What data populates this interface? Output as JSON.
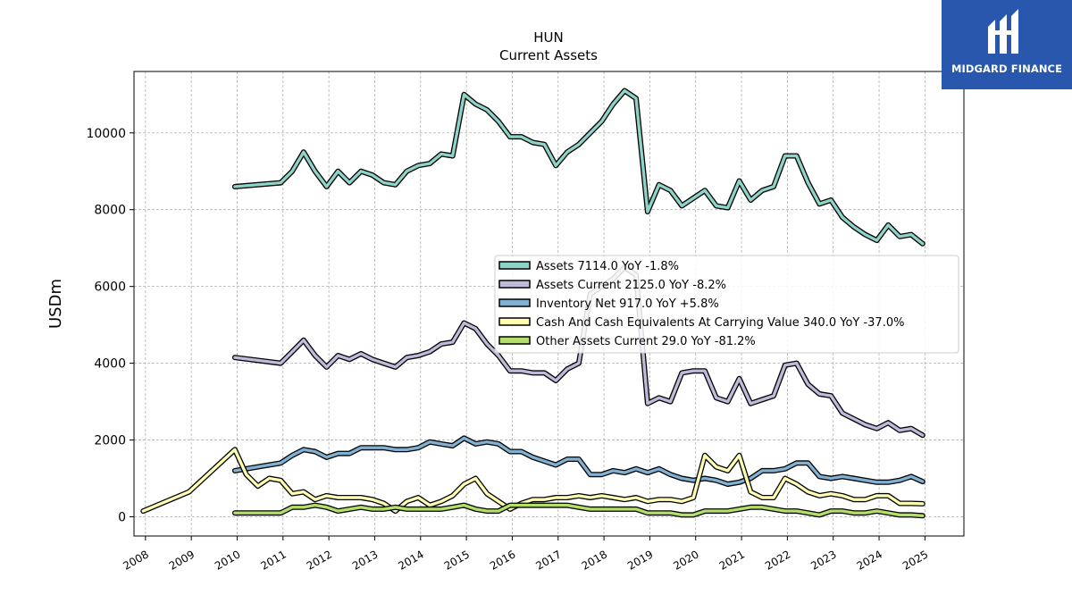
{
  "chart_data": {
    "type": "line",
    "title": "HUN",
    "subtitle": "Current  Assets",
    "ylabel": "USDm",
    "xlabel": "",
    "xlim": [
      2007.75,
      2025.85
    ],
    "ylim": [
      -500,
      11600
    ],
    "yticks": [
      0,
      2000,
      4000,
      6000,
      8000,
      10000
    ],
    "xticks": [
      "2008",
      "2009",
      "2010",
      "2011",
      "2012",
      "2013",
      "2014",
      "2015",
      "2016",
      "2017",
      "2018",
      "2019",
      "2020",
      "2021",
      "2022",
      "2023",
      "2024",
      "2025"
    ],
    "grid": true,
    "legend_position": "center-right",
    "series": [
      {
        "name": "Assets  7114.0 YoY -1.8%",
        "color": "#8dd3c7",
        "points": [
          [
            2009.95,
            8600
          ],
          [
            2010.95,
            8700
          ],
          [
            2011.2,
            9000
          ],
          [
            2011.45,
            9500
          ],
          [
            2011.7,
            9000
          ],
          [
            2011.95,
            8600
          ],
          [
            2012.2,
            9000
          ],
          [
            2012.45,
            8700
          ],
          [
            2012.7,
            9000
          ],
          [
            2012.95,
            8900
          ],
          [
            2013.2,
            8700
          ],
          [
            2013.45,
            8650
          ],
          [
            2013.7,
            9000
          ],
          [
            2013.95,
            9150
          ],
          [
            2014.2,
            9200
          ],
          [
            2014.45,
            9450
          ],
          [
            2014.7,
            9400
          ],
          [
            2014.95,
            11000
          ],
          [
            2015.2,
            10750
          ],
          [
            2015.45,
            10600
          ],
          [
            2015.7,
            10300
          ],
          [
            2015.95,
            9900
          ],
          [
            2016.2,
            9900
          ],
          [
            2016.45,
            9750
          ],
          [
            2016.7,
            9700
          ],
          [
            2016.95,
            9150
          ],
          [
            2017.2,
            9500
          ],
          [
            2017.45,
            9700
          ],
          [
            2017.7,
            10000
          ],
          [
            2017.95,
            10300
          ],
          [
            2018.2,
            10750
          ],
          [
            2018.45,
            11100
          ],
          [
            2018.7,
            10900
          ],
          [
            2018.95,
            7950
          ],
          [
            2019.2,
            8650
          ],
          [
            2019.45,
            8500
          ],
          [
            2019.7,
            8100
          ],
          [
            2019.95,
            8300
          ],
          [
            2020.2,
            8500
          ],
          [
            2020.45,
            8100
          ],
          [
            2020.7,
            8050
          ],
          [
            2020.95,
            8750
          ],
          [
            2021.2,
            8250
          ],
          [
            2021.45,
            8500
          ],
          [
            2021.7,
            8600
          ],
          [
            2021.95,
            9400
          ],
          [
            2022.2,
            9400
          ],
          [
            2022.45,
            8700
          ],
          [
            2022.7,
            8150
          ],
          [
            2022.95,
            8250
          ],
          [
            2023.2,
            7800
          ],
          [
            2023.45,
            7550
          ],
          [
            2023.7,
            7350
          ],
          [
            2023.95,
            7200
          ],
          [
            2024.2,
            7600
          ],
          [
            2024.45,
            7300
          ],
          [
            2024.7,
            7350
          ],
          [
            2024.95,
            7114
          ]
        ]
      },
      {
        "name": "Assets Current  2125.0 YoY -8.2%",
        "color": "#bebada",
        "points": [
          [
            2009.95,
            4150
          ],
          [
            2010.95,
            4000
          ],
          [
            2011.2,
            4300
          ],
          [
            2011.45,
            4600
          ],
          [
            2011.7,
            4200
          ],
          [
            2011.95,
            3900
          ],
          [
            2012.2,
            4200
          ],
          [
            2012.45,
            4100
          ],
          [
            2012.7,
            4250
          ],
          [
            2012.95,
            4100
          ],
          [
            2013.2,
            4000
          ],
          [
            2013.45,
            3900
          ],
          [
            2013.7,
            4150
          ],
          [
            2013.95,
            4200
          ],
          [
            2014.2,
            4300
          ],
          [
            2014.45,
            4500
          ],
          [
            2014.7,
            4550
          ],
          [
            2014.95,
            5050
          ],
          [
            2015.2,
            4900
          ],
          [
            2015.45,
            4500
          ],
          [
            2015.7,
            4200
          ],
          [
            2015.95,
            3800
          ],
          [
            2016.2,
            3800
          ],
          [
            2016.45,
            3750
          ],
          [
            2016.7,
            3750
          ],
          [
            2016.95,
            3550
          ],
          [
            2017.2,
            3850
          ],
          [
            2017.45,
            4000
          ],
          [
            2017.7,
            5800
          ],
          [
            2017.95,
            6000
          ],
          [
            2018.2,
            6200
          ],
          [
            2018.45,
            6500
          ],
          [
            2018.7,
            6300
          ],
          [
            2018.95,
            2950
          ],
          [
            2019.2,
            3100
          ],
          [
            2019.45,
            3000
          ],
          [
            2019.7,
            3750
          ],
          [
            2019.95,
            3800
          ],
          [
            2020.2,
            3800
          ],
          [
            2020.45,
            3100
          ],
          [
            2020.7,
            3000
          ],
          [
            2020.95,
            3600
          ],
          [
            2021.2,
            2950
          ],
          [
            2021.45,
            3050
          ],
          [
            2021.7,
            3150
          ],
          [
            2021.95,
            3950
          ],
          [
            2022.2,
            4000
          ],
          [
            2022.45,
            3450
          ],
          [
            2022.7,
            3200
          ],
          [
            2022.95,
            3150
          ],
          [
            2023.2,
            2700
          ],
          [
            2023.45,
            2550
          ],
          [
            2023.7,
            2400
          ],
          [
            2023.95,
            2300
          ],
          [
            2024.2,
            2450
          ],
          [
            2024.45,
            2250
          ],
          [
            2024.7,
            2300
          ],
          [
            2024.95,
            2125
          ]
        ]
      },
      {
        "name": "Inventory Net  917.0 YoY +5.8%",
        "color": "#80b1d3",
        "points": [
          [
            2009.95,
            1200
          ],
          [
            2010.95,
            1400
          ],
          [
            2011.2,
            1600
          ],
          [
            2011.45,
            1750
          ],
          [
            2011.7,
            1700
          ],
          [
            2011.95,
            1550
          ],
          [
            2012.2,
            1650
          ],
          [
            2012.45,
            1650
          ],
          [
            2012.7,
            1800
          ],
          [
            2012.95,
            1800
          ],
          [
            2013.2,
            1800
          ],
          [
            2013.45,
            1750
          ],
          [
            2013.7,
            1750
          ],
          [
            2013.95,
            1800
          ],
          [
            2014.2,
            1950
          ],
          [
            2014.45,
            1900
          ],
          [
            2014.7,
            1850
          ],
          [
            2014.95,
            2050
          ],
          [
            2015.2,
            1900
          ],
          [
            2015.45,
            1950
          ],
          [
            2015.7,
            1900
          ],
          [
            2015.95,
            1700
          ],
          [
            2016.2,
            1700
          ],
          [
            2016.45,
            1550
          ],
          [
            2016.7,
            1450
          ],
          [
            2016.95,
            1350
          ],
          [
            2017.2,
            1500
          ],
          [
            2017.45,
            1500
          ],
          [
            2017.7,
            1100
          ],
          [
            2017.95,
            1100
          ],
          [
            2018.2,
            1200
          ],
          [
            2018.45,
            1150
          ],
          [
            2018.7,
            1250
          ],
          [
            2018.95,
            1150
          ],
          [
            2019.2,
            1250
          ],
          [
            2019.45,
            1100
          ],
          [
            2019.7,
            1000
          ],
          [
            2019.95,
            950
          ],
          [
            2020.2,
            1000
          ],
          [
            2020.45,
            950
          ],
          [
            2020.7,
            850
          ],
          [
            2020.95,
            900
          ],
          [
            2021.2,
            1000
          ],
          [
            2021.45,
            1200
          ],
          [
            2021.7,
            1200
          ],
          [
            2021.95,
            1250
          ],
          [
            2022.2,
            1400
          ],
          [
            2022.45,
            1400
          ],
          [
            2022.7,
            1050
          ],
          [
            2022.95,
            1000
          ],
          [
            2023.2,
            1050
          ],
          [
            2023.45,
            1000
          ],
          [
            2023.7,
            950
          ],
          [
            2023.95,
            900
          ],
          [
            2024.2,
            900
          ],
          [
            2024.45,
            950
          ],
          [
            2024.7,
            1050
          ],
          [
            2024.95,
            917
          ]
        ]
      },
      {
        "name": "Cash And Cash Equivalents At Carrying Value  340.0 YoY -37.0%",
        "color": "#ffffb3",
        "points": [
          [
            2007.95,
            150
          ],
          [
            2008.95,
            650
          ],
          [
            2009.95,
            1750
          ],
          [
            2010.2,
            1100
          ],
          [
            2010.45,
            800
          ],
          [
            2010.7,
            1000
          ],
          [
            2010.95,
            950
          ],
          [
            2011.2,
            600
          ],
          [
            2011.45,
            650
          ],
          [
            2011.7,
            450
          ],
          [
            2011.95,
            550
          ],
          [
            2012.2,
            500
          ],
          [
            2012.45,
            500
          ],
          [
            2012.7,
            500
          ],
          [
            2012.95,
            450
          ],
          [
            2013.2,
            350
          ],
          [
            2013.45,
            150
          ],
          [
            2013.7,
            400
          ],
          [
            2013.95,
            500
          ],
          [
            2014.2,
            300
          ],
          [
            2014.45,
            400
          ],
          [
            2014.7,
            550
          ],
          [
            2014.95,
            850
          ],
          [
            2015.2,
            1000
          ],
          [
            2015.45,
            600
          ],
          [
            2015.7,
            400
          ],
          [
            2015.95,
            200
          ],
          [
            2016.2,
            350
          ],
          [
            2016.45,
            450
          ],
          [
            2016.7,
            450
          ],
          [
            2016.95,
            500
          ],
          [
            2017.2,
            500
          ],
          [
            2017.45,
            550
          ],
          [
            2017.7,
            500
          ],
          [
            2017.95,
            550
          ],
          [
            2018.2,
            500
          ],
          [
            2018.45,
            450
          ],
          [
            2018.7,
            500
          ],
          [
            2018.95,
            400
          ],
          [
            2019.2,
            450
          ],
          [
            2019.45,
            450
          ],
          [
            2019.7,
            400
          ],
          [
            2019.95,
            500
          ],
          [
            2020.2,
            1600
          ],
          [
            2020.45,
            1300
          ],
          [
            2020.7,
            1200
          ],
          [
            2020.95,
            1600
          ],
          [
            2021.2,
            650
          ],
          [
            2021.45,
            500
          ],
          [
            2021.7,
            500
          ],
          [
            2021.95,
            1000
          ],
          [
            2022.2,
            850
          ],
          [
            2022.45,
            650
          ],
          [
            2022.7,
            550
          ],
          [
            2022.95,
            600
          ],
          [
            2023.2,
            550
          ],
          [
            2023.45,
            450
          ],
          [
            2023.7,
            450
          ],
          [
            2023.95,
            550
          ],
          [
            2024.2,
            550
          ],
          [
            2024.45,
            350
          ],
          [
            2024.7,
            350
          ],
          [
            2024.95,
            340
          ]
        ]
      },
      {
        "name": "Other Assets Current  29.0 YoY -81.2%",
        "color": "#b3de69",
        "points": [
          [
            2009.95,
            100
          ],
          [
            2010.95,
            100
          ],
          [
            2011.2,
            250
          ],
          [
            2011.45,
            250
          ],
          [
            2011.7,
            300
          ],
          [
            2011.95,
            250
          ],
          [
            2012.2,
            150
          ],
          [
            2012.45,
            200
          ],
          [
            2012.7,
            250
          ],
          [
            2012.95,
            200
          ],
          [
            2013.2,
            200
          ],
          [
            2013.45,
            250
          ],
          [
            2013.7,
            200
          ],
          [
            2013.95,
            200
          ],
          [
            2014.2,
            200
          ],
          [
            2014.45,
            200
          ],
          [
            2014.7,
            250
          ],
          [
            2014.95,
            300
          ],
          [
            2015.2,
            200
          ],
          [
            2015.45,
            150
          ],
          [
            2015.7,
            150
          ],
          [
            2015.95,
            300
          ],
          [
            2016.2,
            300
          ],
          [
            2016.45,
            300
          ],
          [
            2016.7,
            300
          ],
          [
            2016.95,
            300
          ],
          [
            2017.2,
            300
          ],
          [
            2017.45,
            250
          ],
          [
            2017.7,
            200
          ],
          [
            2017.95,
            200
          ],
          [
            2018.2,
            200
          ],
          [
            2018.45,
            200
          ],
          [
            2018.7,
            200
          ],
          [
            2018.95,
            100
          ],
          [
            2019.2,
            100
          ],
          [
            2019.45,
            100
          ],
          [
            2019.7,
            50
          ],
          [
            2019.95,
            50
          ],
          [
            2020.2,
            150
          ],
          [
            2020.45,
            150
          ],
          [
            2020.7,
            150
          ],
          [
            2020.95,
            200
          ],
          [
            2021.2,
            250
          ],
          [
            2021.45,
            250
          ],
          [
            2021.7,
            200
          ],
          [
            2021.95,
            150
          ],
          [
            2022.2,
            150
          ],
          [
            2022.45,
            100
          ],
          [
            2022.7,
            50
          ],
          [
            2022.95,
            150
          ],
          [
            2023.2,
            150
          ],
          [
            2023.45,
            100
          ],
          [
            2023.7,
            100
          ],
          [
            2023.95,
            150
          ],
          [
            2024.2,
            100
          ],
          [
            2024.45,
            50
          ],
          [
            2024.7,
            50
          ],
          [
            2024.95,
            29
          ]
        ]
      }
    ]
  },
  "logo": {
    "text": "MIDGARD FINANCE",
    "color": "#2857ad"
  }
}
